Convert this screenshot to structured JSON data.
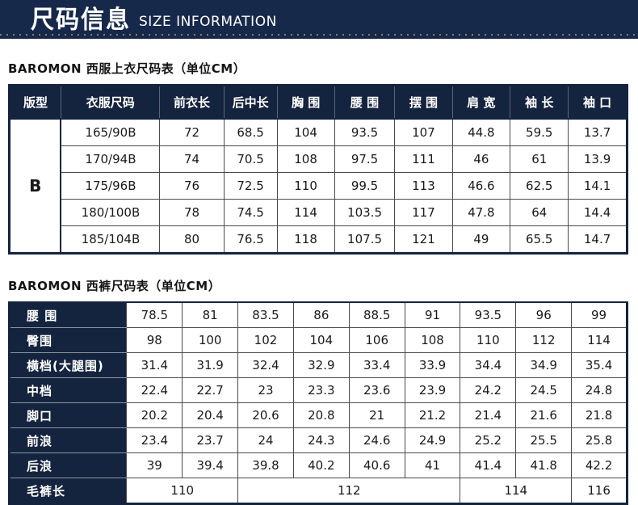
{
  "header": {
    "title_cn": "尺码信息",
    "title_en": "SIZE INFORMATION"
  },
  "jacket_table": {
    "title": "BAROMON 西服上衣尺码表（单位CM）",
    "columns": [
      "版型",
      "衣服尺码",
      "前衣长",
      "后中长",
      "胸 围",
      "腰 围",
      "摆 围",
      "肩 宽",
      "袖 长",
      "袖 口"
    ],
    "fit_type": "B",
    "rows": [
      [
        "165/90B",
        "72",
        "68.5",
        "104",
        "93.5",
        "107",
        "44.8",
        "59.5",
        "13.7"
      ],
      [
        "170/94B",
        "74",
        "70.5",
        "108",
        "97.5",
        "111",
        "46",
        "61",
        "13.9"
      ],
      [
        "175/96B",
        "76",
        "72.5",
        "110",
        "99.5",
        "113",
        "46.6",
        "62.5",
        "14.1"
      ],
      [
        "180/100B",
        "78",
        "74.5",
        "114",
        "103.5",
        "117",
        "47.8",
        "64",
        "14.4"
      ],
      [
        "185/104B",
        "80",
        "76.5",
        "118",
        "107.5",
        "121",
        "49",
        "65.5",
        "14.7"
      ]
    ]
  },
  "pants_table": {
    "title": "BAROMON 西裤尺码表（单位CM）",
    "rows": [
      {
        "label": "腰 围",
        "values": [
          "78.5",
          "81",
          "83.5",
          "86",
          "88.5",
          "91",
          "93.5",
          "96",
          "99"
        ]
      },
      {
        "label": "臀围",
        "values": [
          "98",
          "100",
          "102",
          "104",
          "106",
          "108",
          "110",
          "112",
          "114"
        ]
      },
      {
        "label": "横档(大腿围)",
        "values": [
          "31.4",
          "31.9",
          "32.4",
          "32.9",
          "33.4",
          "33.9",
          "34.4",
          "34.9",
          "35.4"
        ]
      },
      {
        "label": "中档",
        "values": [
          "22.4",
          "22.7",
          "23",
          "23.3",
          "23.6",
          "23.9",
          "24.2",
          "24.5",
          "24.8"
        ]
      },
      {
        "label": "脚口",
        "values": [
          "20.2",
          "20.4",
          "20.6",
          "20.8",
          "21",
          "21.2",
          "21.4",
          "21.6",
          "21.8"
        ]
      },
      {
        "label": "前浪",
        "values": [
          "23.4",
          "23.7",
          "24",
          "24.3",
          "24.6",
          "24.9",
          "25.2",
          "25.5",
          "25.8"
        ]
      },
      {
        "label": "后浪",
        "values": [
          "39",
          "39.4",
          "39.8",
          "40.2",
          "40.6",
          "41",
          "41.4",
          "41.8",
          "42.2"
        ]
      }
    ],
    "length_row": {
      "label": "毛裤长",
      "cells": [
        {
          "value": "110",
          "span": 2
        },
        {
          "value": "112",
          "span": 4
        },
        {
          "value": "114",
          "span": 2
        },
        {
          "value": "116",
          "span": 1
        }
      ]
    }
  },
  "colors": {
    "navy": "#15243e",
    "bar_navy": "#17294a",
    "dot_gold": "#8d7f5c"
  }
}
